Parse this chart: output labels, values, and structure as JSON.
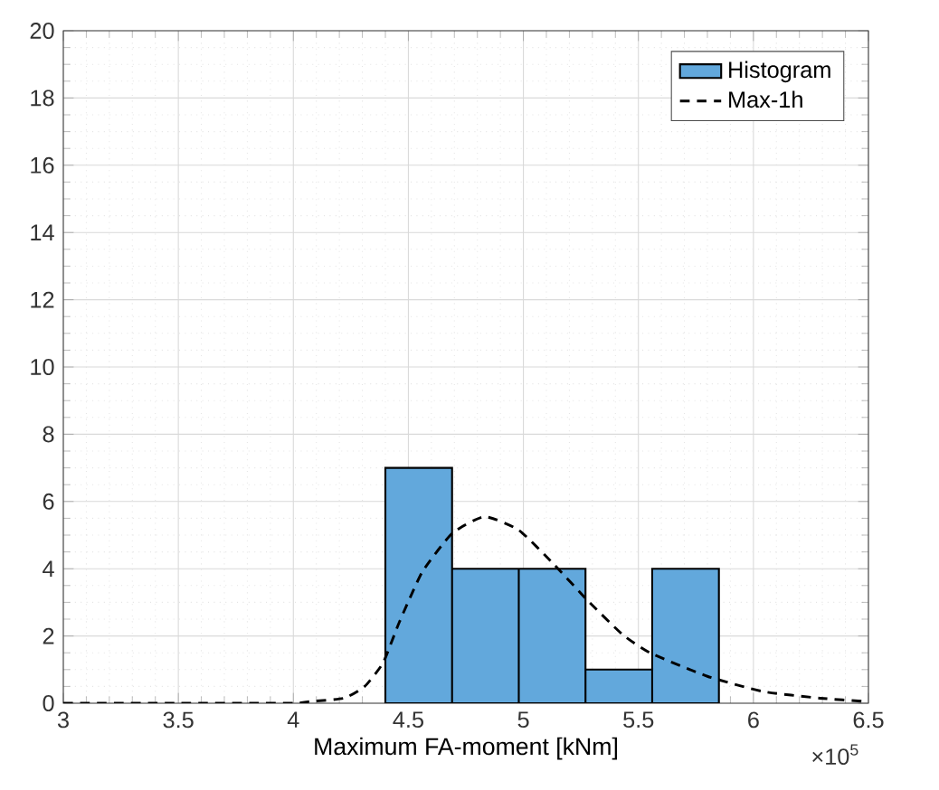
{
  "chart_data": {
    "type": "histogram",
    "xlabel": "Maximum FA-moment [kNm]",
    "annotations": [
      "×10$^{5}$"
    ],
    "xlim": [
      3,
      6.5
    ],
    "xticks": [
      3,
      3.5,
      4,
      4.5,
      5,
      5.5,
      6,
      6.5
    ],
    "ylim": [
      0,
      20
    ],
    "yticks": [
      0,
      2,
      4,
      6,
      8,
      10,
      12,
      14,
      16,
      18,
      20
    ],
    "grid": true,
    "legend": "top right",
    "series": [
      {
        "name": "Histogram",
        "color": "#62a8dc",
        "bins": [
          4.4,
          4.69,
          4.98,
          5.27,
          5.56,
          5.85
        ],
        "values": [
          7,
          4,
          4,
          1,
          4
        ]
      },
      {
        "name": "Max-1h",
        "type": "line",
        "color": "#000000",
        "line_style": "dashed",
        "marker": "none",
        "x": [
          3,
          3.5,
          4,
          4.07,
          4.22,
          4.31,
          4.39,
          4.46,
          4.56,
          4.69,
          4.83,
          4.98,
          5.13,
          5.28,
          5.43,
          5.55,
          5.8,
          6.04,
          6.29,
          6.49
        ],
        "values": [
          0,
          0,
          0,
          0.05,
          0.15,
          0.5,
          1.2,
          2.4,
          3.9,
          5.05,
          5.55,
          5.15,
          4.15,
          3.05,
          2.05,
          1.5,
          0.8,
          0.35,
          0.15,
          0.05
        ]
      }
    ]
  }
}
